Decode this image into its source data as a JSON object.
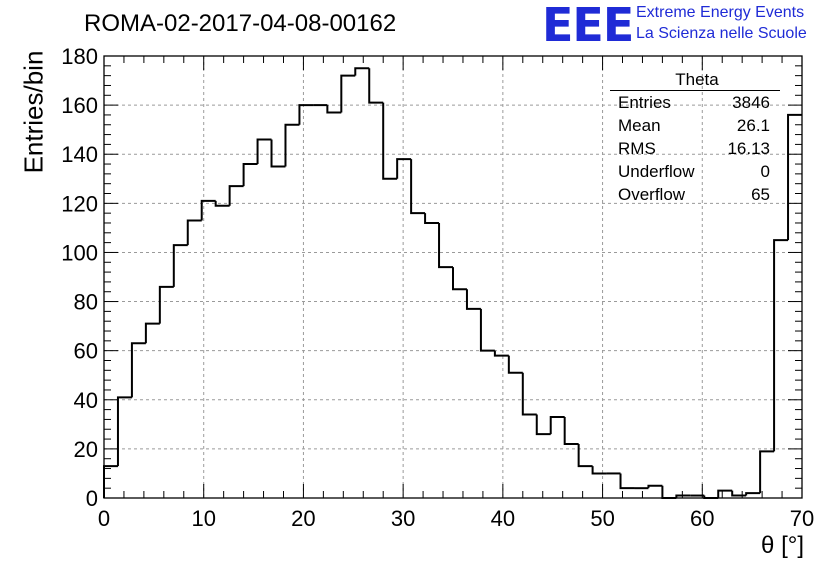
{
  "title": "ROMA-02-2017-04-08-00162",
  "logo": {
    "text": "EEE",
    "line1": "Extreme Energy Events",
    "line2": "La Scienza nelle Scuole",
    "color": "#1f2bd6"
  },
  "stats": {
    "name": "Theta",
    "rows": [
      {
        "label": "Entries",
        "value": "3846"
      },
      {
        "label": "Mean",
        "value": "26.1"
      },
      {
        "label": "RMS",
        "value": "16.13"
      },
      {
        "label": "Underflow",
        "value": "0"
      },
      {
        "label": "Overflow",
        "value": "65"
      }
    ]
  },
  "chart_data": {
    "type": "bar",
    "style": "step-histogram",
    "xlabel": "θ [°]",
    "ylabel": "Entries/bin",
    "xlim": [
      0,
      70
    ],
    "ylim": [
      0,
      180
    ],
    "xticks": [
      0,
      10,
      20,
      30,
      40,
      50,
      60,
      70
    ],
    "yticks": [
      0,
      20,
      40,
      60,
      80,
      100,
      120,
      140,
      160,
      180
    ],
    "grid": true,
    "bin_width": 1.4,
    "bin_starts": [
      0,
      1.4,
      2.8,
      4.2,
      5.6,
      7.0,
      8.4,
      9.8,
      11.2,
      12.6,
      14.0,
      15.4,
      16.8,
      18.2,
      19.6,
      21.0,
      22.4,
      23.8,
      25.2,
      26.6,
      28.0,
      29.4,
      30.8,
      32.2,
      33.6,
      35.0,
      36.4,
      37.8,
      39.2,
      40.6,
      42.0,
      43.4,
      44.8,
      46.2,
      47.6,
      49.0,
      50.4,
      51.8,
      53.2,
      54.6,
      56.0,
      57.4,
      58.8,
      60.2,
      61.6,
      63.0,
      64.4,
      65.8,
      67.2,
      68.6
    ],
    "values": [
      13,
      41,
      63,
      71,
      86,
      103,
      113,
      121,
      119,
      127,
      136,
      146,
      135,
      152,
      160,
      160,
      157,
      172,
      175,
      161,
      130,
      138,
      116,
      112,
      94,
      85,
      77,
      60,
      58,
      51,
      34,
      26,
      33,
      22,
      13,
      10,
      10,
      4,
      4,
      5,
      0,
      1,
      1,
      0,
      3,
      1,
      2,
      19,
      105,
      156
    ]
  }
}
